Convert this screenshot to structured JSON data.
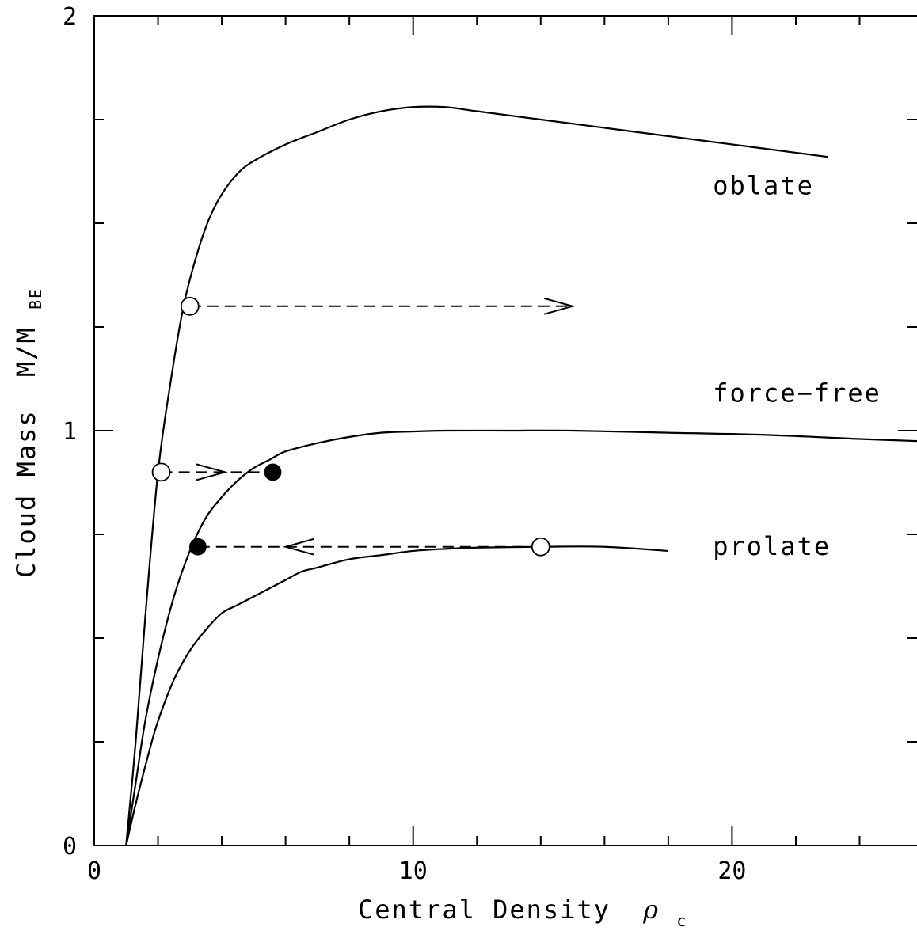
{
  "chart_data": {
    "type": "line",
    "xlabel": "Central Density",
    "xlabel_symbol": "ρ",
    "xlabel_symbol_sub": "c",
    "ylabel": "Cloud Mass",
    "ylabel_symbol_main": "M/M",
    "ylabel_symbol_sub": "BE",
    "xlim": [
      0,
      25.8
    ],
    "ylim": [
      0,
      2
    ],
    "x_ticks": [
      0,
      10,
      20
    ],
    "y_ticks": [
      0,
      1,
      2
    ],
    "x_tick_labels": [
      "0",
      "10",
      "20"
    ],
    "y_tick_labels": [
      "0",
      "1",
      "2"
    ],
    "series": [
      {
        "name": "oblate",
        "x": [
          1.0,
          1.3,
          1.6,
          2.0,
          2.4,
          2.8,
          3.2,
          3.6,
          4.0,
          4.5,
          5.0,
          6.0,
          7.0,
          8.0,
          9.0,
          10.0,
          11.0,
          12.0,
          14.0,
          16.0,
          18.0,
          20.0,
          22.0,
          23.0
        ],
        "y": [
          0.0,
          0.25,
          0.55,
          0.9,
          1.12,
          1.3,
          1.42,
          1.51,
          1.57,
          1.62,
          1.65,
          1.69,
          1.72,
          1.75,
          1.77,
          1.78,
          1.78,
          1.77,
          1.75,
          1.73,
          1.71,
          1.69,
          1.67,
          1.66
        ]
      },
      {
        "name": "force-free",
        "x": [
          1.0,
          1.3,
          1.6,
          2.0,
          2.5,
          3.0,
          3.5,
          4.0,
          4.5,
          5.0,
          5.5,
          6.0,
          7.0,
          8.0,
          9.0,
          10.0,
          11.0,
          13.0,
          15.0,
          18.0,
          21.0,
          24.0,
          25.8
        ],
        "y": [
          0.0,
          0.15,
          0.3,
          0.45,
          0.6,
          0.71,
          0.79,
          0.84,
          0.88,
          0.91,
          0.93,
          0.95,
          0.97,
          0.985,
          0.995,
          0.998,
          1.0,
          1.0,
          1.0,
          0.995,
          0.99,
          0.98,
          0.975
        ]
      },
      {
        "name": "prolate",
        "x": [
          1.0,
          1.3,
          1.7,
          2.0,
          2.5,
          3.0,
          3.5,
          4.0,
          4.5,
          5.0,
          5.5,
          6.0,
          6.5,
          7.0,
          8.0,
          9.0,
          10.0,
          11.0,
          12.0,
          14.0,
          16.0,
          18.0
        ],
        "y": [
          0.0,
          0.1,
          0.22,
          0.3,
          0.4,
          0.47,
          0.52,
          0.56,
          0.58,
          0.6,
          0.62,
          0.64,
          0.66,
          0.67,
          0.69,
          0.7,
          0.71,
          0.715,
          0.718,
          0.72,
          0.72,
          0.71
        ]
      }
    ],
    "markers": [
      {
        "type": "open",
        "x": 3.0,
        "y": 1.3
      },
      {
        "type": "open",
        "x": 2.1,
        "y": 0.9
      },
      {
        "type": "open",
        "x": 14.0,
        "y": 0.72
      },
      {
        "type": "filled",
        "x": 5.6,
        "y": 0.9
      },
      {
        "type": "filled",
        "x": 3.25,
        "y": 0.72
      }
    ],
    "transitions": [
      {
        "from": [
          3.0,
          1.3
        ],
        "to": [
          15.0,
          1.3
        ],
        "arrow_at": 15.0
      },
      {
        "from": [
          2.1,
          0.9
        ],
        "to": [
          5.6,
          0.9
        ],
        "arrow_at": 4.1
      },
      {
        "from": [
          14.0,
          0.72
        ],
        "to": [
          3.25,
          0.72
        ],
        "arrow_at": 6.0
      }
    ],
    "annotations": [
      {
        "text": "oblate",
        "x": 19.4,
        "y": 1.57
      },
      {
        "text": "force−free",
        "x": 19.4,
        "y": 1.07
      },
      {
        "text": "prolate",
        "x": 19.4,
        "y": 0.7
      }
    ]
  }
}
